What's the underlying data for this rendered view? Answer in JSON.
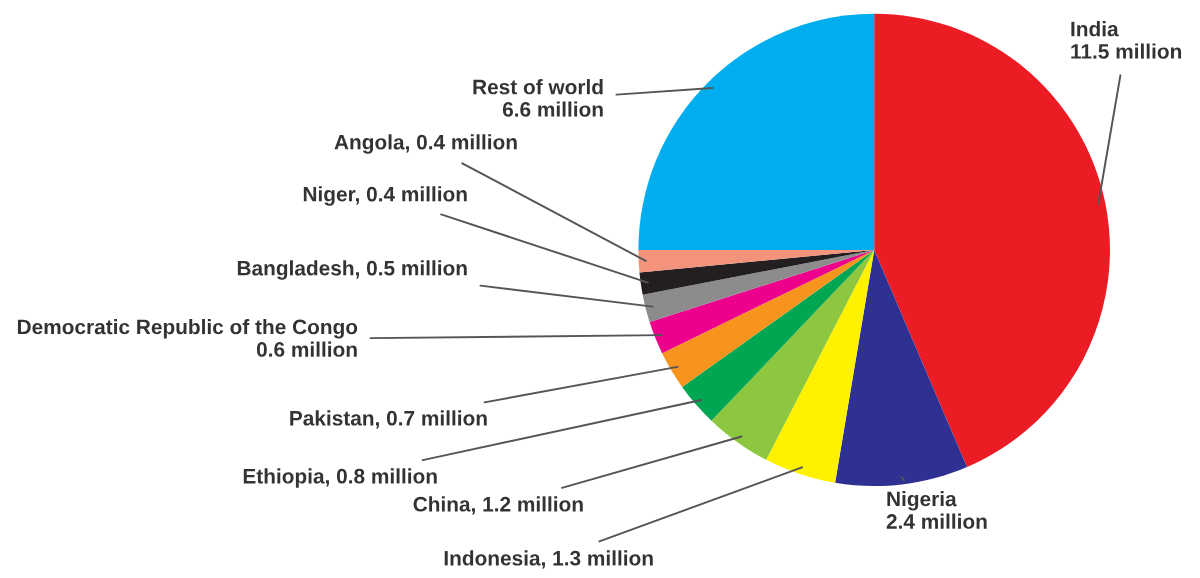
{
  "chart_data": {
    "type": "pie",
    "categories": [
      "India",
      "Nigeria",
      "Indonesia",
      "China",
      "Ethiopia",
      "Pakistan",
      "Democratic Republic of the Congo",
      "Bangladesh",
      "Niger",
      "Angola",
      "Rest of world"
    ],
    "values": [
      11.5,
      2.4,
      1.3,
      1.2,
      0.8,
      0.7,
      0.6,
      0.5,
      0.4,
      0.4,
      6.6
    ],
    "value_labels": [
      "11.5 million",
      "2.4 million",
      "1.3 million",
      "1.2 million",
      "0.8 million",
      "0.7 million",
      "0.6 million",
      "0.5 million",
      "0.4 million",
      "0.4 million",
      "6.6 million"
    ],
    "colors": [
      "#ec1c24",
      "#2e3192",
      "#fff200",
      "#8dc63f",
      "#00a651",
      "#f7941d",
      "#ec008c",
      "#8c8c8c",
      "#231f20",
      "#f4937b",
      "#00aeef"
    ]
  }
}
